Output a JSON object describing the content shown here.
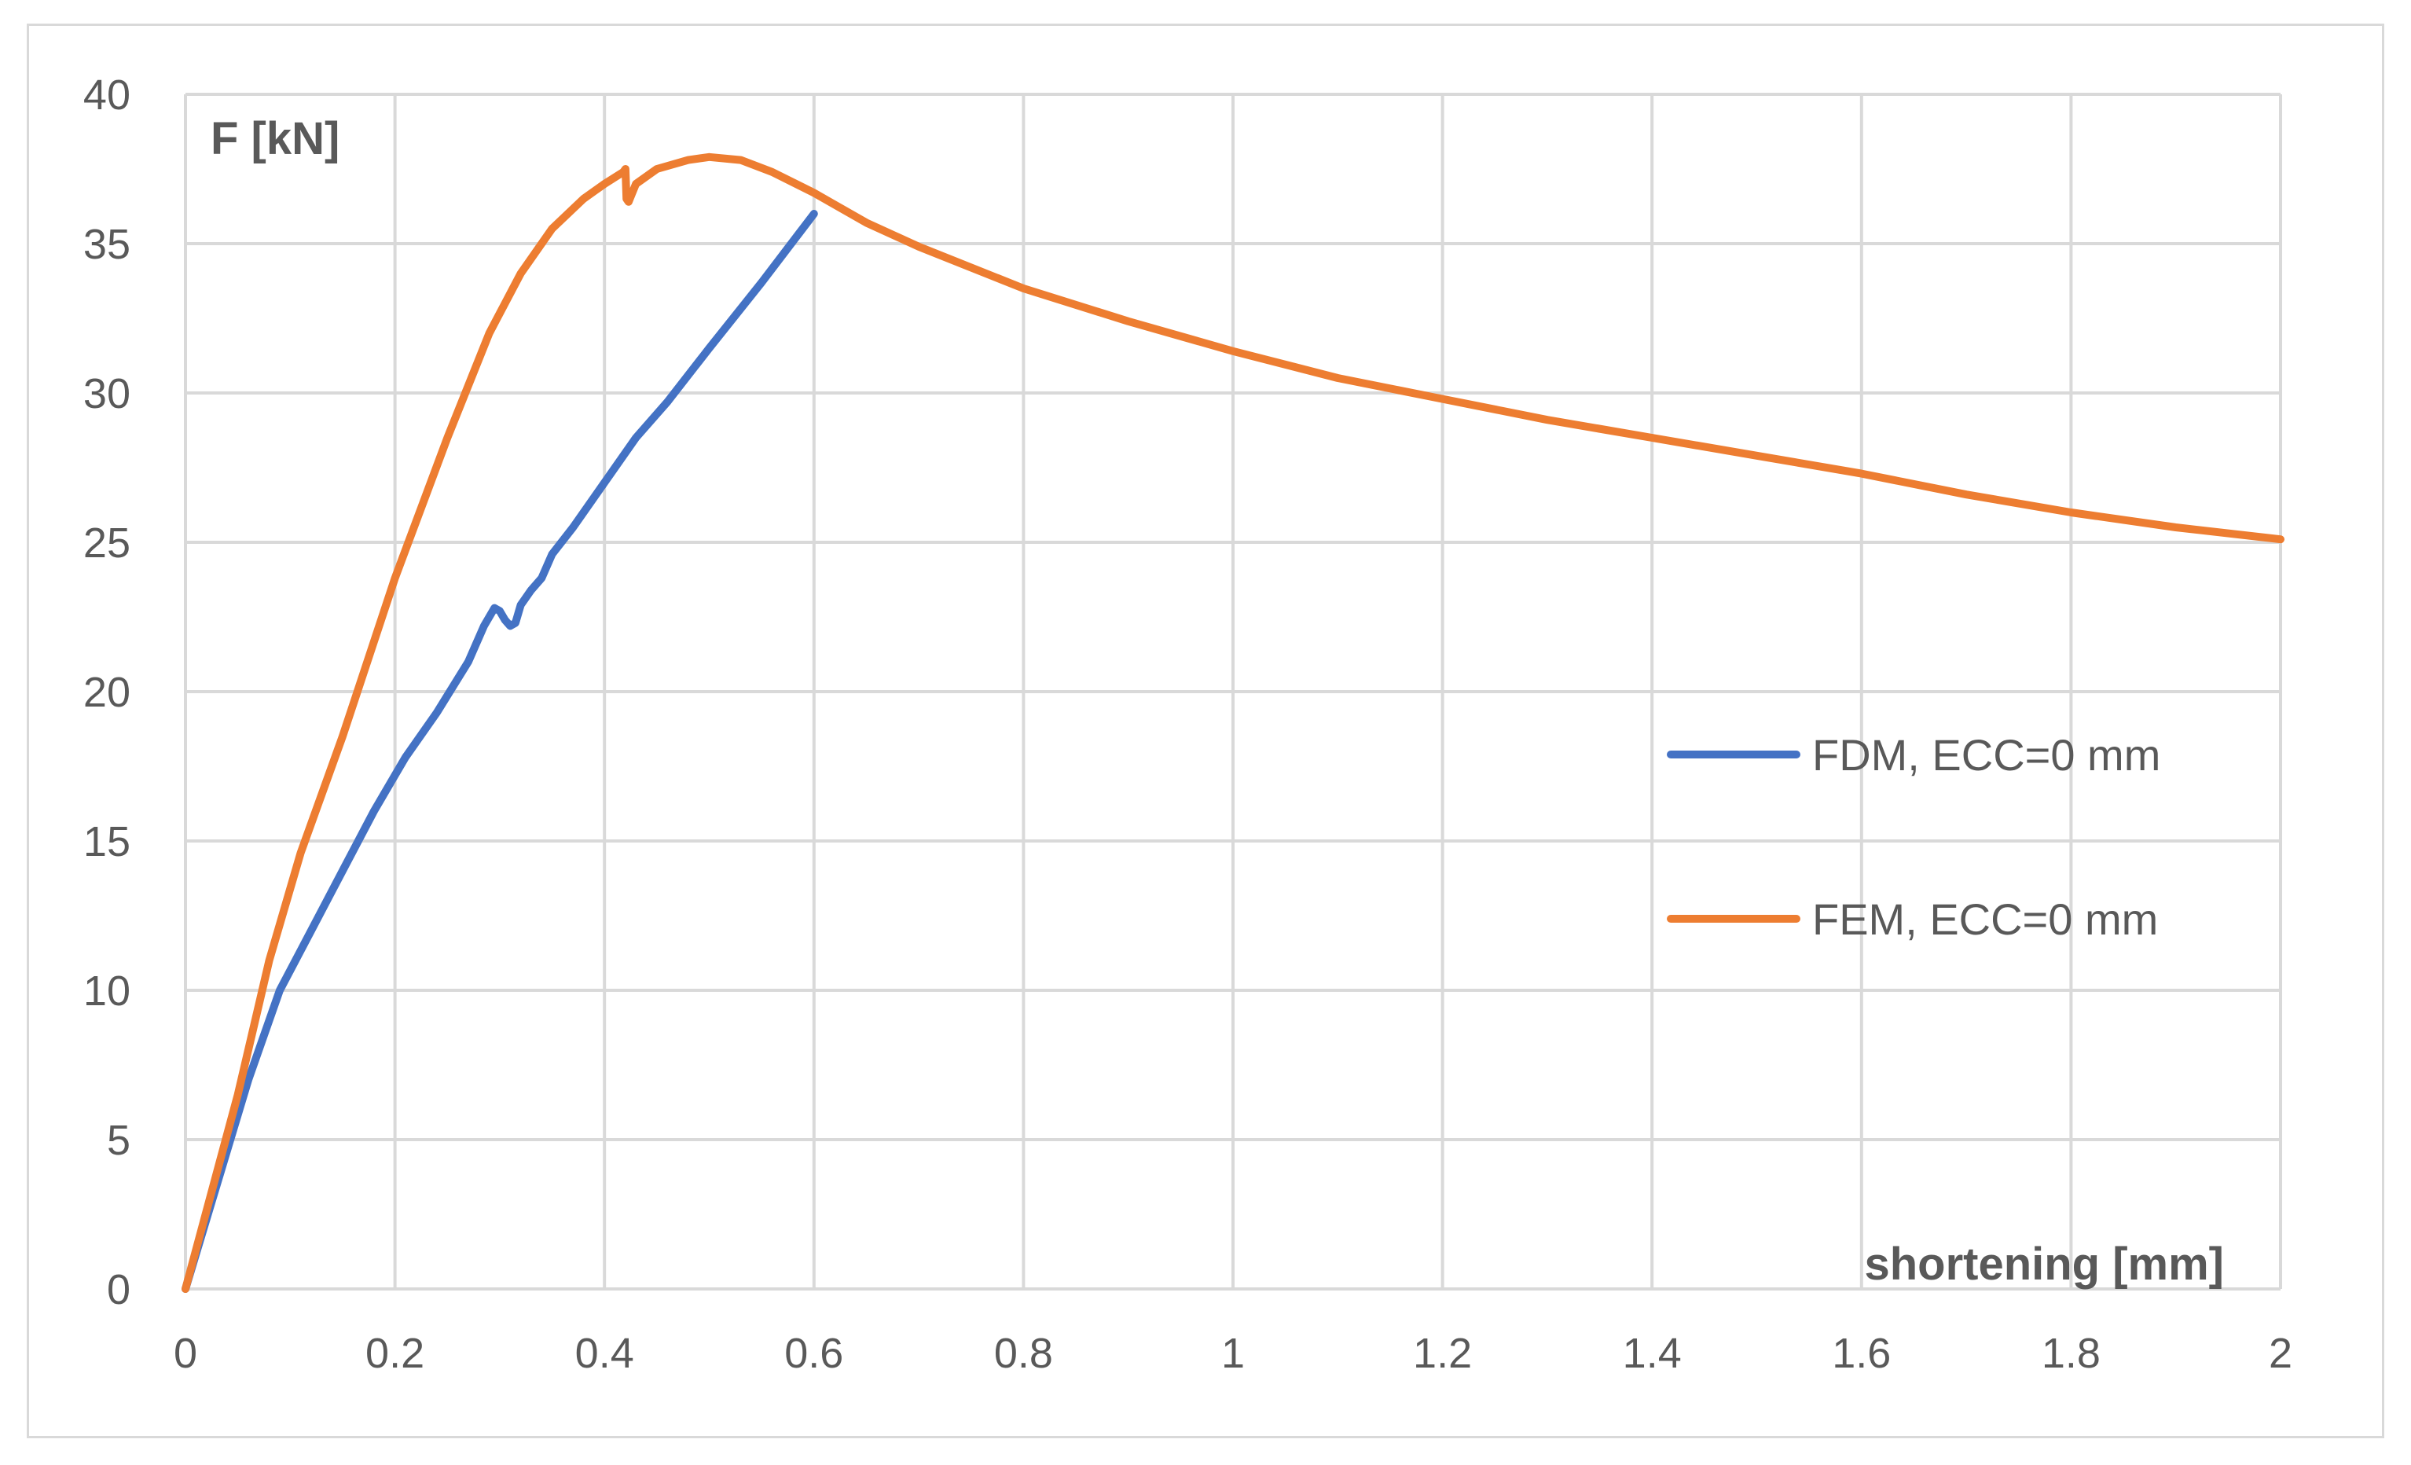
{
  "chart_data": {
    "type": "line",
    "xlabel": "shortening [mm]",
    "ylabel": "F [kN]",
    "xlim": [
      0,
      2
    ],
    "ylim": [
      0,
      40
    ],
    "x_ticks": [
      "0",
      "0.2",
      "0.4",
      "0.6",
      "0.8",
      "1",
      "1.2",
      "1.4",
      "1.6",
      "1.8",
      "2"
    ],
    "y_ticks": [
      "0",
      "5",
      "10",
      "15",
      "20",
      "25",
      "30",
      "35",
      "40"
    ],
    "grid": true,
    "legend_position": "right",
    "series": [
      {
        "name": "FDM, ECC=0 mm",
        "color": "#4472C4",
        "points": [
          [
            0,
            0
          ],
          [
            0.03,
            3.5
          ],
          [
            0.06,
            7.0
          ],
          [
            0.09,
            10.0
          ],
          [
            0.12,
            12.0
          ],
          [
            0.15,
            14.0
          ],
          [
            0.18,
            16.0
          ],
          [
            0.21,
            17.8
          ],
          [
            0.24,
            19.3
          ],
          [
            0.27,
            21.0
          ],
          [
            0.285,
            22.2
          ],
          [
            0.295,
            22.8
          ],
          [
            0.3,
            22.7
          ],
          [
            0.305,
            22.4
          ],
          [
            0.31,
            22.2
          ],
          [
            0.315,
            22.3
          ],
          [
            0.32,
            22.9
          ],
          [
            0.33,
            23.4
          ],
          [
            0.34,
            23.8
          ],
          [
            0.35,
            24.6
          ],
          [
            0.37,
            25.5
          ],
          [
            0.4,
            27.0
          ],
          [
            0.43,
            28.5
          ],
          [
            0.46,
            29.7
          ],
          [
            0.5,
            31.5
          ],
          [
            0.55,
            33.7
          ],
          [
            0.6,
            36.0
          ]
        ]
      },
      {
        "name": "FEM, ECC=0 mm",
        "color": "#ED7D31",
        "points": [
          [
            0,
            0
          ],
          [
            0.05,
            6.5
          ],
          [
            0.08,
            11.0
          ],
          [
            0.11,
            14.6
          ],
          [
            0.15,
            18.5
          ],
          [
            0.2,
            23.8
          ],
          [
            0.25,
            28.5
          ],
          [
            0.29,
            32.0
          ],
          [
            0.32,
            34.0
          ],
          [
            0.35,
            35.5
          ],
          [
            0.38,
            36.5
          ],
          [
            0.4,
            37.0
          ],
          [
            0.418,
            37.4
          ],
          [
            0.42,
            37.5
          ],
          [
            0.421,
            36.5
          ],
          [
            0.423,
            36.4
          ],
          [
            0.43,
            37.0
          ],
          [
            0.45,
            37.5
          ],
          [
            0.48,
            37.8
          ],
          [
            0.5,
            37.9
          ],
          [
            0.53,
            37.8
          ],
          [
            0.56,
            37.4
          ],
          [
            0.6,
            36.7
          ],
          [
            0.65,
            35.7
          ],
          [
            0.7,
            34.9
          ],
          [
            0.8,
            33.5
          ],
          [
            0.9,
            32.4
          ],
          [
            1.0,
            31.4
          ],
          [
            1.1,
            30.5
          ],
          [
            1.2,
            29.8
          ],
          [
            1.3,
            29.1
          ],
          [
            1.4,
            28.5
          ],
          [
            1.5,
            27.9
          ],
          [
            1.6,
            27.3
          ],
          [
            1.7,
            26.6
          ],
          [
            1.8,
            26.0
          ],
          [
            1.9,
            25.5
          ],
          [
            2.0,
            25.1
          ]
        ]
      }
    ]
  }
}
